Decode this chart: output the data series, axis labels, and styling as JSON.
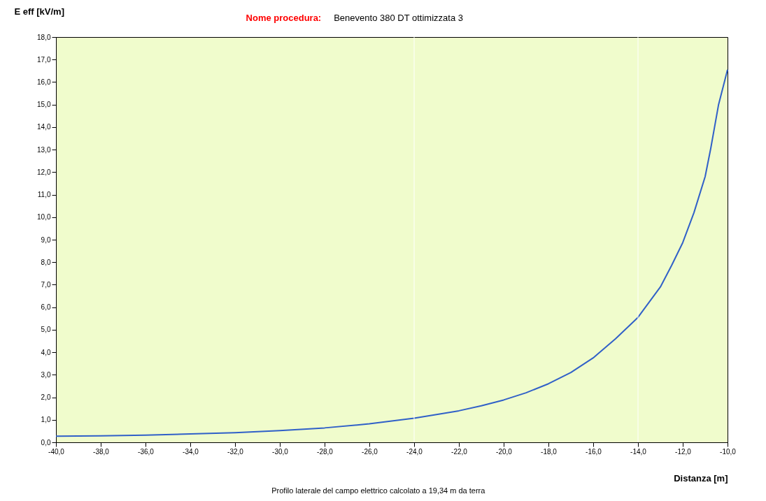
{
  "chart_data": {
    "type": "line",
    "title": "Nome procedura:",
    "subtitle": "Benevento 380  DT ottimizzata 3",
    "xlabel": "Distanza [m]",
    "ylabel": "E eff [kV/m]",
    "annotations": [
      "Profilo laterale del campo elettrico calcolato a 19,34 m da terra"
    ],
    "x": [
      -40,
      -38,
      -36,
      -34,
      -32,
      -30,
      -28,
      -26,
      -24,
      -22,
      -21,
      -20,
      -19,
      -18,
      -17,
      -16,
      -15,
      -14,
      -13,
      -12.5,
      -12,
      -11.5,
      -11,
      -10.75,
      -10.4,
      -10
    ],
    "series": [
      {
        "color": "#3060c8",
        "values": [
          0.27,
          0.29,
          0.32,
          0.37,
          0.43,
          0.52,
          0.64,
          0.82,
          1.07,
          1.4,
          1.62,
          1.88,
          2.2,
          2.6,
          3.1,
          3.75,
          4.6,
          5.55,
          6.9,
          7.85,
          8.87,
          10.2,
          11.8,
          13.05,
          15.0,
          16.55
        ]
      }
    ],
    "xlim": [
      -40,
      -10
    ],
    "xticks": [
      {
        "value": -40,
        "label": "-40,0"
      },
      {
        "value": -38,
        "label": "-38,0"
      },
      {
        "value": -36,
        "label": "-36,0"
      },
      {
        "value": -34,
        "label": "-34,0"
      },
      {
        "value": -32,
        "label": "-32,0"
      },
      {
        "value": -30,
        "label": "-30,0"
      },
      {
        "value": -28,
        "label": "-28,0"
      },
      {
        "value": -26,
        "label": "-26,0"
      },
      {
        "value": -24,
        "label": "-24,0"
      },
      {
        "value": -22,
        "label": "-22,0"
      },
      {
        "value": -20,
        "label": "-20,0"
      },
      {
        "value": -18,
        "label": "-18,0"
      },
      {
        "value": -16,
        "label": "-16,0"
      },
      {
        "value": -14,
        "label": "-14,0"
      },
      {
        "value": -12,
        "label": "-12,0"
      },
      {
        "value": -10,
        "label": "-10,0"
      }
    ],
    "ylim": [
      0,
      18
    ],
    "yticks": [
      {
        "value": 0,
        "label": "0,0"
      },
      {
        "value": 1,
        "label": "1,0"
      },
      {
        "value": 2,
        "label": "2,0"
      },
      {
        "value": 3,
        "label": "3,0"
      },
      {
        "value": 4,
        "label": "4,0"
      },
      {
        "value": 5,
        "label": "5,0"
      },
      {
        "value": 6,
        "label": "6,0"
      },
      {
        "value": 7,
        "label": "7,0"
      },
      {
        "value": 8,
        "label": "8,0"
      },
      {
        "value": 9,
        "label": "9,0"
      },
      {
        "value": 10,
        "label": "10,0"
      },
      {
        "value": 11,
        "label": "11,0"
      },
      {
        "value": 12,
        "label": "12,0"
      },
      {
        "value": 13,
        "label": "13,0"
      },
      {
        "value": 14,
        "label": "14,0"
      },
      {
        "value": 15,
        "label": "15,0"
      },
      {
        "value": 16,
        "label": "16,0"
      },
      {
        "value": 17,
        "label": "17,0"
      },
      {
        "value": 18,
        "label": "18,0"
      }
    ],
    "ref_lines": [
      {
        "axis": "x",
        "value": -24,
        "color": "#ffffff"
      },
      {
        "axis": "x",
        "value": -14,
        "color": "#ffffff"
      }
    ],
    "grid": false,
    "marker": "none",
    "line_style": "solid"
  }
}
